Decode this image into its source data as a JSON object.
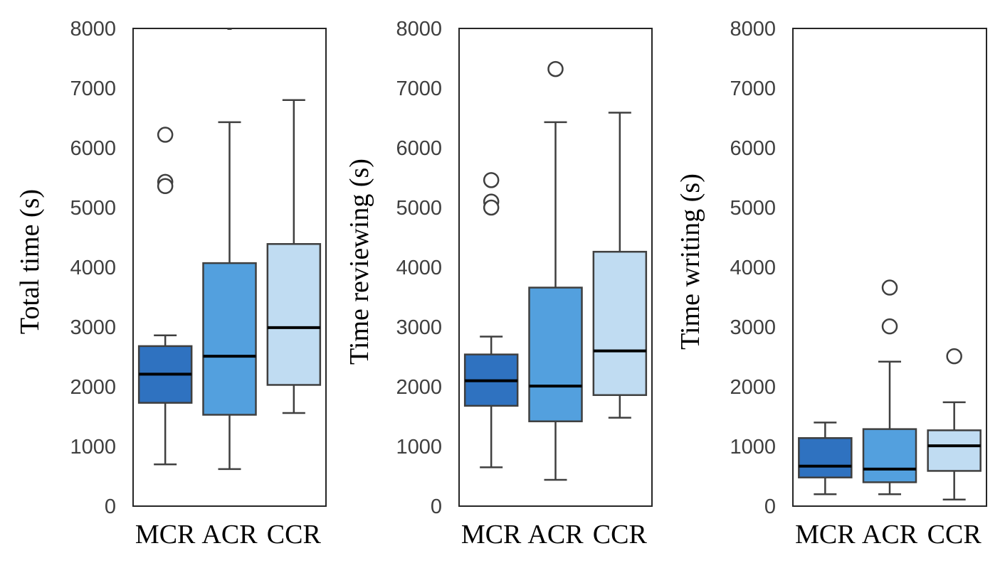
{
  "chart_data": [
    {
      "type": "box",
      "ylabel": "Total time (s)",
      "categories": [
        "MCR",
        "ACR",
        "CCR"
      ],
      "ylim": [
        0,
        8000
      ],
      "yticks": [
        0,
        1000,
        2000,
        3000,
        4000,
        5000,
        6000,
        7000,
        8000
      ],
      "grid": false,
      "boxes": [
        {
          "category": "MCR",
          "whisker_low": 700,
          "q1": 1730,
          "median": 2210,
          "q3": 2680,
          "whisker_high": 2860,
          "outliers": [
            6220,
            5430,
            5360
          ],
          "color": "#2f72c0"
        },
        {
          "category": "ACR",
          "whisker_low": 620,
          "q1": 1530,
          "median": 2510,
          "q3": 4070,
          "whisker_high": 6430,
          "outliers": [
            8000
          ],
          "color": "#53a0de"
        },
        {
          "category": "CCR",
          "whisker_low": 1560,
          "q1": 2030,
          "median": 2990,
          "q3": 4390,
          "whisker_high": 6800,
          "outliers": [],
          "color": "#c0dcf2"
        }
      ]
    },
    {
      "type": "box",
      "ylabel": "Time reviewing (s)",
      "categories": [
        "MCR",
        "ACR",
        "CCR"
      ],
      "ylim": [
        0,
        8000
      ],
      "yticks": [
        0,
        1000,
        2000,
        3000,
        4000,
        5000,
        6000,
        7000,
        8000
      ],
      "grid": false,
      "boxes": [
        {
          "category": "MCR",
          "whisker_low": 650,
          "q1": 1680,
          "median": 2100,
          "q3": 2540,
          "whisker_high": 2840,
          "outliers": [
            5460,
            5100,
            5000
          ],
          "color": "#2f72c0"
        },
        {
          "category": "ACR",
          "whisker_low": 440,
          "q1": 1420,
          "median": 2010,
          "q3": 3660,
          "whisker_high": 6430,
          "outliers": [
            7320
          ],
          "color": "#53a0de"
        },
        {
          "category": "CCR",
          "whisker_low": 1480,
          "q1": 1860,
          "median": 2600,
          "q3": 4260,
          "whisker_high": 6590,
          "outliers": [],
          "color": "#c0dcf2"
        }
      ]
    },
    {
      "type": "box",
      "ylabel": "Time writing (s)",
      "categories": [
        "MCR",
        "ACR",
        "CCR"
      ],
      "ylim": [
        0,
        8000
      ],
      "yticks": [
        0,
        1000,
        2000,
        3000,
        4000,
        5000,
        6000,
        7000,
        8000
      ],
      "grid": false,
      "boxes": [
        {
          "category": "MCR",
          "whisker_low": 200,
          "q1": 480,
          "median": 670,
          "q3": 1140,
          "whisker_high": 1400,
          "outliers": [],
          "color": "#2f72c0"
        },
        {
          "category": "ACR",
          "whisker_low": 200,
          "q1": 400,
          "median": 620,
          "q3": 1290,
          "whisker_high": 2420,
          "outliers": [
            3660,
            3010
          ],
          "color": "#53a0de"
        },
        {
          "category": "CCR",
          "whisker_low": 110,
          "q1": 590,
          "median": 1010,
          "q3": 1270,
          "whisker_high": 1740,
          "outliers": [
            2510
          ],
          "color": "#c0dcf2"
        }
      ]
    }
  ]
}
